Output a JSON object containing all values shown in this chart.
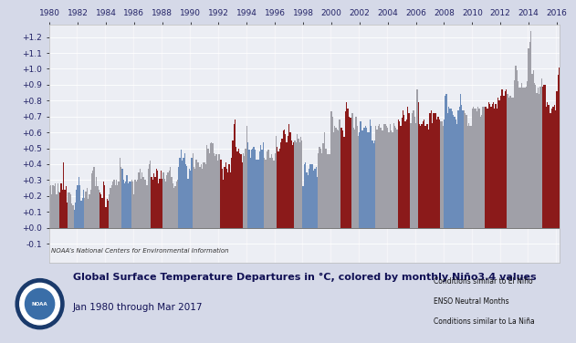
{
  "title": "Global Surface Temperature Departures in °C, colored by monthly Niño3.4 values",
  "subtitle": "Jan 1980 through Mar 2017",
  "credit": "NOAA’s National Centers for Environmental Information",
  "ylim": [
    -0.22,
    1.28
  ],
  "yticks": [
    -0.1,
    0.0,
    0.1,
    0.2,
    0.3,
    0.4,
    0.5,
    0.6,
    0.7,
    0.8,
    0.9,
    1.0,
    1.1,
    1.2
  ],
  "ytick_labels": [
    "-0.1",
    "+0.0",
    "+0.1",
    "+0.2",
    "+0.3",
    "+0.4",
    "+0.5",
    "+0.6",
    "+0.7",
    "+0.8",
    "+0.9",
    "+1.0",
    "+1.1",
    "+1.2"
  ],
  "bg_color": "#d5d9e8",
  "plot_bg_color": "#e4e7f0",
  "el_nino_color": "#8b1a1a",
  "la_nina_color": "#6b8cba",
  "neutral_color": "#a0a0a8",
  "teal_line_color": "#00b0b0",
  "legend_el_nino": "Conditions similar to El Niño",
  "legend_neutral": "ENSO Neutral Months",
  "legend_la_nina": "Conditions similar to La Niña",
  "bar_width": 1.0,
  "start_year": 1980,
  "end_year": 2017,
  "xtick_years": [
    1980,
    1982,
    1984,
    1986,
    1988,
    1990,
    1992,
    1994,
    1996,
    1998,
    2000,
    2002,
    2004,
    2006,
    2008,
    2010,
    2012,
    2014,
    2016
  ],
  "stripe_color": "#ffffff",
  "stripe_alpha": 0.3,
  "temps": [
    0.26,
    0.27,
    0.21,
    0.27,
    0.26,
    0.28,
    0.21,
    0.28,
    0.23,
    0.22,
    0.28,
    0.24,
    0.41,
    0.24,
    0.26,
    0.16,
    0.22,
    0.22,
    0.21,
    0.15,
    0.14,
    0.11,
    0.16,
    0.24,
    0.27,
    0.32,
    0.27,
    0.17,
    0.19,
    0.24,
    0.19,
    0.23,
    0.25,
    0.18,
    0.21,
    0.24,
    0.34,
    0.36,
    0.38,
    0.26,
    0.32,
    0.26,
    0.24,
    0.22,
    0.21,
    0.19,
    0.29,
    0.27,
    0.13,
    0.18,
    0.17,
    0.21,
    0.25,
    0.27,
    0.29,
    0.3,
    0.27,
    0.3,
    0.27,
    0.29,
    0.44,
    0.38,
    0.37,
    0.3,
    0.28,
    0.29,
    0.33,
    0.28,
    0.29,
    0.29,
    0.3,
    0.29,
    0.21,
    0.3,
    0.29,
    0.3,
    0.35,
    0.37,
    0.31,
    0.35,
    0.32,
    0.3,
    0.3,
    0.27,
    0.37,
    0.4,
    0.42,
    0.32,
    0.3,
    0.34,
    0.32,
    0.37,
    0.36,
    0.28,
    0.31,
    0.36,
    0.31,
    0.35,
    0.31,
    0.29,
    0.33,
    0.35,
    0.36,
    0.38,
    0.32,
    0.28,
    0.25,
    0.26,
    0.29,
    0.3,
    0.38,
    0.44,
    0.49,
    0.42,
    0.44,
    0.47,
    0.4,
    0.39,
    0.31,
    0.37,
    0.36,
    0.44,
    0.47,
    0.38,
    0.37,
    0.43,
    0.41,
    0.41,
    0.38,
    0.4,
    0.37,
    0.41,
    0.41,
    0.4,
    0.52,
    0.5,
    0.47,
    0.53,
    0.54,
    0.53,
    0.47,
    0.45,
    0.46,
    0.42,
    0.46,
    0.46,
    0.43,
    0.37,
    0.3,
    0.38,
    0.41,
    0.37,
    0.35,
    0.4,
    0.35,
    0.44,
    0.55,
    0.65,
    0.68,
    0.51,
    0.48,
    0.5,
    0.47,
    0.46,
    0.41,
    0.47,
    0.45,
    0.5,
    0.64,
    0.54,
    0.49,
    0.44,
    0.49,
    0.5,
    0.51,
    0.49,
    0.43,
    0.43,
    0.43,
    0.48,
    0.52,
    0.49,
    0.54,
    0.44,
    0.43,
    0.48,
    0.49,
    0.49,
    0.44,
    0.46,
    0.44,
    0.42,
    0.47,
    0.58,
    0.51,
    0.48,
    0.5,
    0.54,
    0.56,
    0.61,
    0.62,
    0.59,
    0.54,
    0.58,
    0.65,
    0.6,
    0.55,
    0.52,
    0.54,
    0.55,
    0.54,
    0.59,
    0.56,
    0.54,
    0.57,
    0.55,
    0.26,
    0.4,
    0.41,
    0.35,
    0.33,
    0.37,
    0.4,
    0.4,
    0.4,
    0.36,
    0.37,
    0.38,
    0.32,
    0.47,
    0.51,
    0.5,
    0.47,
    0.53,
    0.6,
    0.5,
    0.5,
    0.46,
    0.46,
    0.46,
    0.73,
    0.7,
    0.6,
    0.64,
    0.63,
    0.62,
    0.61,
    0.68,
    0.63,
    0.63,
    0.61,
    0.57,
    0.73,
    0.79,
    0.75,
    0.7,
    0.69,
    0.69,
    0.72,
    0.63,
    0.62,
    0.7,
    0.64,
    0.58,
    0.6,
    0.67,
    0.61,
    0.61,
    0.63,
    0.64,
    0.63,
    0.6,
    0.6,
    0.68,
    0.64,
    0.55,
    0.53,
    0.55,
    0.64,
    0.62,
    0.64,
    0.65,
    0.63,
    0.61,
    0.61,
    0.65,
    0.65,
    0.64,
    0.63,
    0.6,
    0.65,
    0.61,
    0.6,
    0.66,
    0.64,
    0.63,
    0.62,
    0.68,
    0.67,
    0.64,
    0.69,
    0.74,
    0.71,
    0.67,
    0.68,
    0.76,
    0.72,
    0.66,
    0.66,
    0.72,
    0.74,
    0.7,
    0.66,
    0.87,
    0.79,
    0.65,
    0.64,
    0.65,
    0.67,
    0.68,
    0.64,
    0.65,
    0.65,
    0.62,
    0.72,
    0.74,
    0.66,
    0.72,
    0.72,
    0.72,
    0.68,
    0.7,
    0.68,
    0.67,
    0.67,
    0.64,
    0.68,
    0.83,
    0.84,
    0.72,
    0.76,
    0.75,
    0.75,
    0.73,
    0.71,
    0.7,
    0.68,
    0.65,
    0.74,
    0.76,
    0.84,
    0.77,
    0.74,
    0.74,
    0.72,
    0.71,
    0.64,
    0.66,
    0.64,
    0.64,
    0.75,
    0.76,
    0.75,
    0.75,
    0.73,
    0.76,
    0.75,
    0.7,
    0.71,
    0.76,
    0.76,
    0.76,
    0.76,
    0.75,
    0.79,
    0.78,
    0.76,
    0.78,
    0.79,
    0.75,
    0.78,
    0.75,
    0.82,
    0.8,
    0.83,
    0.87,
    0.87,
    0.83,
    0.86,
    0.87,
    0.84,
    0.82,
    0.83,
    0.83,
    0.82,
    0.82,
    0.93,
    1.02,
    0.99,
    0.92,
    0.88,
    0.88,
    0.91,
    0.88,
    0.88,
    0.88,
    0.89,
    0.92,
    1.13,
    1.17,
    1.24,
    0.97,
    0.99,
    0.91,
    0.9,
    0.85,
    0.88,
    0.84,
    0.89,
    0.94,
    0.89,
    0.9,
    0.9,
    0.76,
    0.79,
    0.77,
    0.72,
    0.72,
    0.75,
    0.76,
    0.77,
    0.74,
    0.86,
    0.96,
    1.01
  ],
  "enso": [
    "N",
    "N",
    "N",
    "N",
    "N",
    "N",
    "N",
    "N",
    "N",
    "E",
    "E",
    "E",
    "E",
    "E",
    "E",
    "E",
    "N",
    "N",
    "N",
    "N",
    "N",
    "L",
    "L",
    "L",
    "L",
    "L",
    "L",
    "L",
    "L",
    "L",
    "N",
    "N",
    "N",
    "N",
    "N",
    "N",
    "N",
    "N",
    "N",
    "N",
    "N",
    "N",
    "N",
    "E",
    "E",
    "E",
    "E",
    "E",
    "E",
    "E",
    "E",
    "N",
    "N",
    "N",
    "N",
    "N",
    "N",
    "N",
    "N",
    "N",
    "N",
    "N",
    "L",
    "L",
    "L",
    "L",
    "L",
    "L",
    "L",
    "L",
    "N",
    "N",
    "N",
    "N",
    "N",
    "N",
    "N",
    "N",
    "N",
    "N",
    "N",
    "N",
    "N",
    "N",
    "N",
    "N",
    "N",
    "E",
    "E",
    "E",
    "E",
    "E",
    "E",
    "E",
    "E",
    "E",
    "E",
    "N",
    "N",
    "N",
    "N",
    "N",
    "N",
    "N",
    "N",
    "N",
    "N",
    "N",
    "N",
    "N",
    "L",
    "L",
    "L",
    "L",
    "L",
    "L",
    "L",
    "L",
    "L",
    "L",
    "L",
    "L",
    "N",
    "N",
    "N",
    "N",
    "N",
    "N",
    "N",
    "N",
    "N",
    "N",
    "N",
    "N",
    "N",
    "N",
    "N",
    "N",
    "N",
    "N",
    "N",
    "N",
    "N",
    "N",
    "N",
    "N",
    "E",
    "E",
    "E",
    "E",
    "E",
    "E",
    "E",
    "E",
    "E",
    "E",
    "E",
    "E",
    "E",
    "E",
    "E",
    "E",
    "E",
    "E",
    "E",
    "N",
    "N",
    "N",
    "N",
    "L",
    "L",
    "L",
    "L",
    "L",
    "L",
    "L",
    "L",
    "L",
    "L",
    "L",
    "L",
    "L",
    "L",
    "N",
    "N",
    "N",
    "N",
    "N",
    "N",
    "N",
    "N",
    "N",
    "N",
    "N",
    "E",
    "E",
    "E",
    "E",
    "E",
    "E",
    "E",
    "E",
    "E",
    "E",
    "E",
    "E",
    "E",
    "E",
    "E",
    "N",
    "N",
    "N",
    "N",
    "N",
    "N",
    "N",
    "L",
    "L",
    "L",
    "L",
    "L",
    "L",
    "L",
    "L",
    "L",
    "L",
    "L",
    "L",
    "L",
    "N",
    "N",
    "N",
    "N",
    "N",
    "N",
    "N",
    "N",
    "N",
    "N",
    "N",
    "N",
    "N",
    "N",
    "N",
    "N",
    "N",
    "N",
    "N",
    "E",
    "E",
    "E",
    "E",
    "E",
    "E",
    "E",
    "E",
    "E",
    "E",
    "N",
    "N",
    "N",
    "N",
    "N",
    "N",
    "L",
    "L",
    "L",
    "L",
    "L",
    "L",
    "L",
    "L",
    "L",
    "L",
    "L",
    "L",
    "L",
    "L",
    "N",
    "N",
    "N",
    "N",
    "N",
    "N",
    "N",
    "N",
    "N",
    "N",
    "N",
    "N",
    "N",
    "N",
    "N",
    "N",
    "N",
    "N",
    "N",
    "E",
    "E",
    "E",
    "E",
    "E",
    "E",
    "E",
    "E",
    "E",
    "E",
    "N",
    "N",
    "N",
    "N",
    "N",
    "N",
    "N",
    "E",
    "E",
    "E",
    "E",
    "E",
    "E",
    "E",
    "E",
    "E",
    "E",
    "E",
    "E",
    "E",
    "E",
    "E",
    "E",
    "E",
    "E",
    "E",
    "N",
    "N",
    "N",
    "L",
    "L",
    "L",
    "L",
    "L",
    "L",
    "L",
    "L",
    "L",
    "L",
    "L",
    "L",
    "L",
    "L",
    "L",
    "L",
    "L",
    "N",
    "N",
    "N",
    "N",
    "N",
    "N",
    "N",
    "N",
    "N",
    "N",
    "N",
    "N",
    "N",
    "N",
    "N",
    "N",
    "N",
    "N",
    "E",
    "E",
    "E",
    "E",
    "E",
    "E",
    "E",
    "E",
    "E",
    "E",
    "E",
    "E",
    "E",
    "E",
    "E",
    "E",
    "E",
    "E",
    "E",
    "N",
    "N",
    "N",
    "N",
    "N",
    "N",
    "N",
    "N",
    "N",
    "N",
    "N",
    "N",
    "N",
    "N",
    "N",
    "N",
    "N",
    "N",
    "N",
    "N",
    "N",
    "N",
    "N",
    "N",
    "N",
    "N",
    "N",
    "N",
    "N",
    "N",
    "E",
    "E",
    "E",
    "E",
    "E",
    "E",
    "E",
    "E",
    "E",
    "E",
    "E",
    "E",
    "E",
    "E",
    "E",
    "E",
    "E",
    "N",
    "N",
    "N",
    "N",
    "N",
    "N",
    "N",
    "N",
    "N",
    "N"
  ]
}
